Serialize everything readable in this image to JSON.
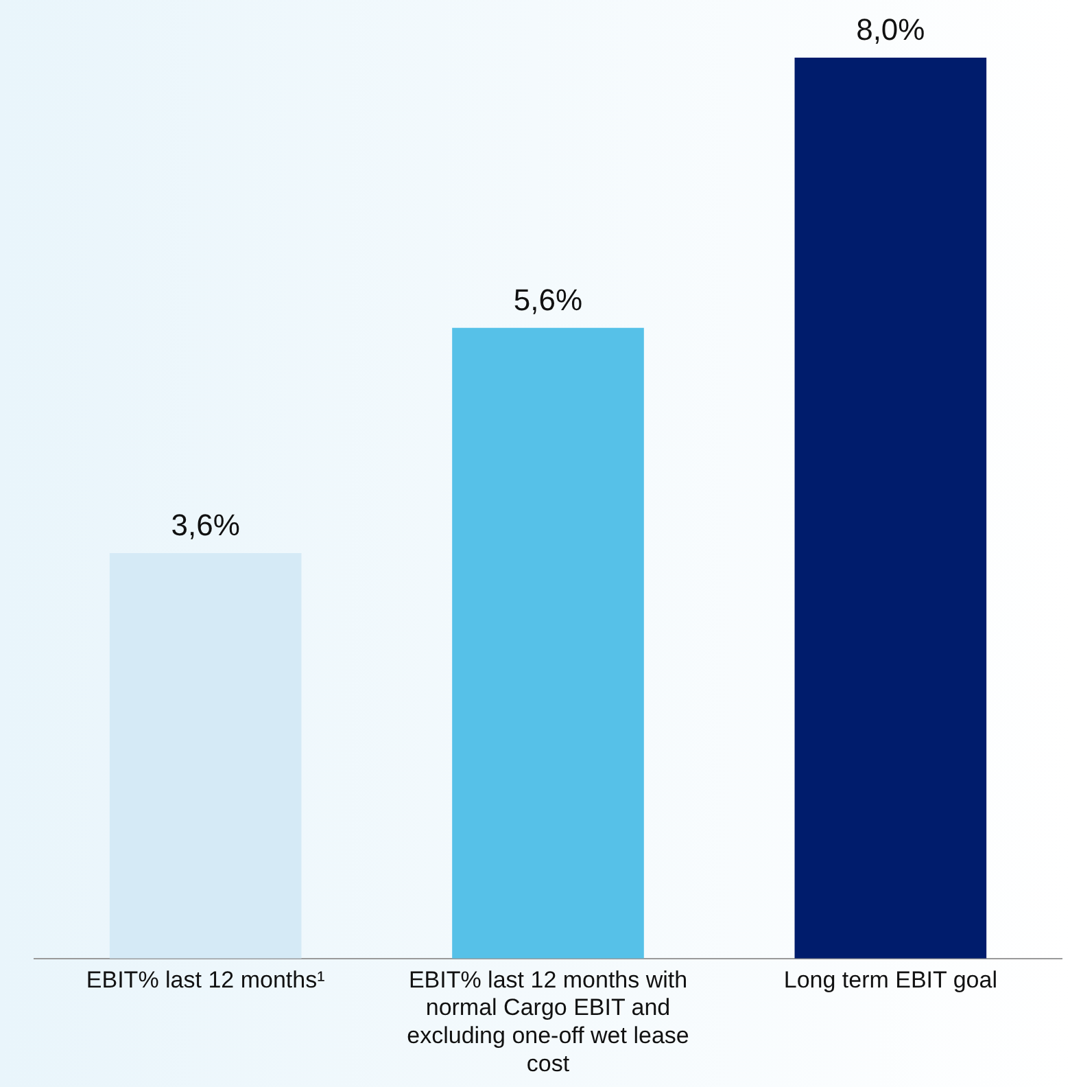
{
  "chart_data": {
    "type": "bar",
    "categories": [
      "EBIT% last 12 months¹",
      "EBIT% last 12 months with normal Cargo EBIT and excluding one-off wet lease cost",
      "Long term EBIT goal"
    ],
    "values": [
      3.6,
      5.6,
      8.0
    ],
    "colors": [
      "#d5eaf6",
      "#56c1e8",
      "#001c6c"
    ],
    "value_labels": [
      "3,6%",
      "5,6%",
      "8,0%"
    ],
    "grid": false,
    "legend": false
  }
}
